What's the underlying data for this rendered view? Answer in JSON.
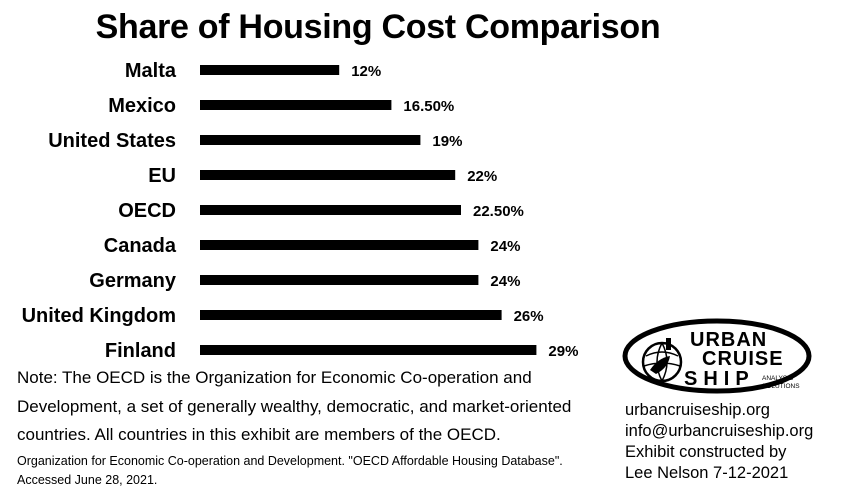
{
  "chart_data": {
    "type": "bar",
    "orientation": "horizontal",
    "title": "Share of Housing Cost Comparison",
    "categories": [
      "Malta",
      "Mexico",
      "United States",
      "EU",
      "OECD",
      "Canada",
      "Germany",
      "United Kingdom",
      "Finland"
    ],
    "values": [
      12,
      16.5,
      19,
      22,
      22.5,
      24,
      24,
      26,
      29
    ],
    "value_labels": [
      "12%",
      "16.50%",
      "19%",
      "22%",
      "22.50%",
      "24%",
      "24%",
      "26%",
      "29%"
    ],
    "xlabel": "",
    "ylabel": "",
    "grid": false,
    "legend": "none",
    "bar_color": "#000000"
  },
  "note": "Note: The OECD is the Organization for Economic Co-operation and Development, a set of generally wealthy, democratic, and market-oriented countries. All countries in this exhibit are members of the OECD.",
  "source": "Organization for Economic Co-operation and Development. \"OECD Affordable Housing Database\". Accessed June 28, 2021.",
  "logo": {
    "line1": "URBAN",
    "line2": "CRUISE",
    "line3": "SHIP",
    "tag1": "ANALYSIS",
    "tag2": "SOLUTIONS",
    "icon": "globe-ship-icon"
  },
  "contact": {
    "website": "urbancruiseship.org",
    "email": "info@urbancruiseship.org",
    "credit1": "Exhibit constructed by",
    "credit2": "Lee Nelson 7-12-2021"
  }
}
